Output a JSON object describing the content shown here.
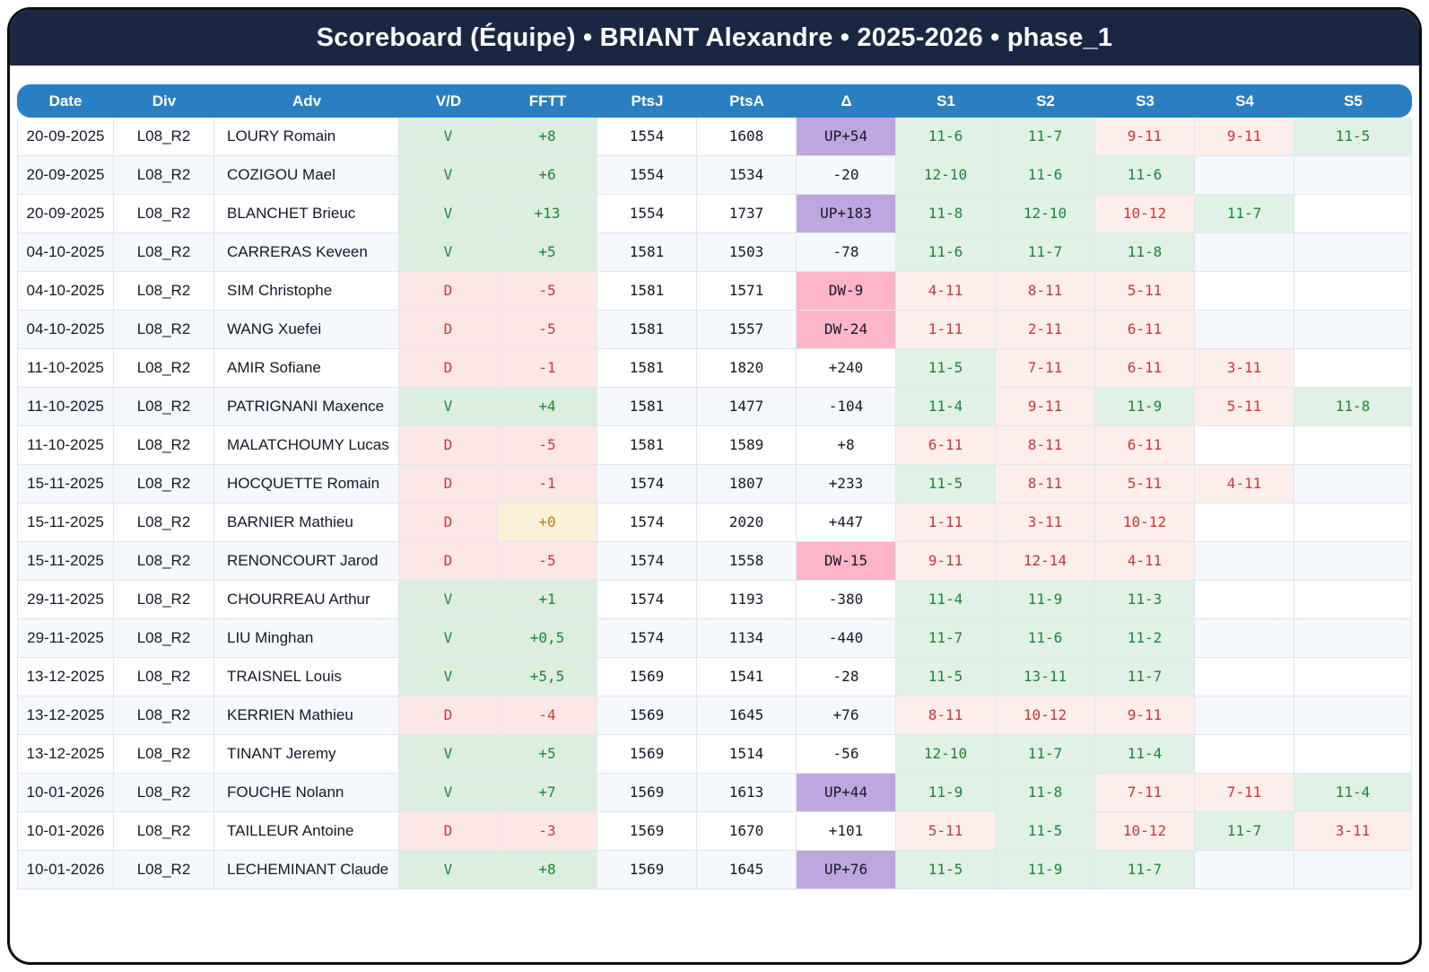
{
  "title": "Scoreboard (Équipe) • BRIANT Alexandre • 2025-2026 • phase_1",
  "colors": {
    "title_bg": "#1a2742",
    "header_bg": "#2a7fc2",
    "win_bg": "#dceede",
    "win_text": "#1e8539",
    "loss_bg": "#fce7e6",
    "loss_text": "#c13a36",
    "set_win_bg": "#e0f1e5",
    "set_loss_bg": "#fdeeec",
    "zero_bg": "#fcf0d8",
    "zero_text": "#b87f16",
    "up_bg": "#bfa6de",
    "down_bg": "#fdb5c7",
    "stripe": "#f5f8fc"
  },
  "table": {
    "columns": [
      "Date",
      "Div",
      "Adv",
      "V/D",
      "FFTT",
      "PtsJ",
      "PtsA",
      "Δ",
      "S1",
      "S2",
      "S3",
      "S4",
      "S5"
    ],
    "rows": [
      {
        "date": "20-09-2025",
        "div": "L08_R2",
        "adv": "LOURY Romain",
        "vd": "V",
        "fftt": "+8",
        "ptsj": "1554",
        "ptsa": "1608",
        "delta": "UP+54",
        "sets": [
          "11-6",
          "11-7",
          "9-11",
          "9-11",
          "11-5"
        ]
      },
      {
        "date": "20-09-2025",
        "div": "L08_R2",
        "adv": "COZIGOU Mael",
        "vd": "V",
        "fftt": "+6",
        "ptsj": "1554",
        "ptsa": "1534",
        "delta": "-20",
        "sets": [
          "12-10",
          "11-6",
          "11-6",
          "",
          ""
        ]
      },
      {
        "date": "20-09-2025",
        "div": "L08_R2",
        "adv": "BLANCHET Brieuc",
        "vd": "V",
        "fftt": "+13",
        "ptsj": "1554",
        "ptsa": "1737",
        "delta": "UP+183",
        "sets": [
          "11-8",
          "12-10",
          "10-12",
          "11-7",
          ""
        ]
      },
      {
        "date": "04-10-2025",
        "div": "L08_R2",
        "adv": "CARRERAS Keveen",
        "vd": "V",
        "fftt": "+5",
        "ptsj": "1581",
        "ptsa": "1503",
        "delta": "-78",
        "sets": [
          "11-6",
          "11-7",
          "11-8",
          "",
          ""
        ]
      },
      {
        "date": "04-10-2025",
        "div": "L08_R2",
        "adv": "SIM Christophe",
        "vd": "D",
        "fftt": "-5",
        "ptsj": "1581",
        "ptsa": "1571",
        "delta": "DW-9",
        "sets": [
          "4-11",
          "8-11",
          "5-11",
          "",
          ""
        ]
      },
      {
        "date": "04-10-2025",
        "div": "L08_R2",
        "adv": "WANG Xuefei",
        "vd": "D",
        "fftt": "-5",
        "ptsj": "1581",
        "ptsa": "1557",
        "delta": "DW-24",
        "sets": [
          "1-11",
          "2-11",
          "6-11",
          "",
          ""
        ]
      },
      {
        "date": "11-10-2025",
        "div": "L08_R2",
        "adv": "AMIR Sofiane",
        "vd": "D",
        "fftt": "-1",
        "ptsj": "1581",
        "ptsa": "1820",
        "delta": "+240",
        "sets": [
          "11-5",
          "7-11",
          "6-11",
          "3-11",
          ""
        ]
      },
      {
        "date": "11-10-2025",
        "div": "L08_R2",
        "adv": "PATRIGNANI Maxence",
        "vd": "V",
        "fftt": "+4",
        "ptsj": "1581",
        "ptsa": "1477",
        "delta": "-104",
        "sets": [
          "11-4",
          "9-11",
          "11-9",
          "5-11",
          "11-8"
        ]
      },
      {
        "date": "11-10-2025",
        "div": "L08_R2",
        "adv": "MALATCHOUMY Lucas",
        "vd": "D",
        "fftt": "-5",
        "ptsj": "1581",
        "ptsa": "1589",
        "delta": "+8",
        "sets": [
          "6-11",
          "8-11",
          "6-11",
          "",
          ""
        ]
      },
      {
        "date": "15-11-2025",
        "div": "L08_R2",
        "adv": "HOCQUETTE Romain",
        "vd": "D",
        "fftt": "-1",
        "ptsj": "1574",
        "ptsa": "1807",
        "delta": "+233",
        "sets": [
          "11-5",
          "8-11",
          "5-11",
          "4-11",
          ""
        ]
      },
      {
        "date": "15-11-2025",
        "div": "L08_R2",
        "adv": "BARNIER Mathieu",
        "vd": "D",
        "fftt": "+0",
        "ptsj": "1574",
        "ptsa": "2020",
        "delta": "+447",
        "sets": [
          "1-11",
          "3-11",
          "10-12",
          "",
          ""
        ]
      },
      {
        "date": "15-11-2025",
        "div": "L08_R2",
        "adv": "RENONCOURT Jarod",
        "vd": "D",
        "fftt": "-5",
        "ptsj": "1574",
        "ptsa": "1558",
        "delta": "DW-15",
        "sets": [
          "9-11",
          "12-14",
          "4-11",
          "",
          ""
        ]
      },
      {
        "date": "29-11-2025",
        "div": "L08_R2",
        "adv": "CHOURREAU Arthur",
        "vd": "V",
        "fftt": "+1",
        "ptsj": "1574",
        "ptsa": "1193",
        "delta": "-380",
        "sets": [
          "11-4",
          "11-9",
          "11-3",
          "",
          ""
        ]
      },
      {
        "date": "29-11-2025",
        "div": "L08_R2",
        "adv": "LIU Minghan",
        "vd": "V",
        "fftt": "+0,5",
        "ptsj": "1574",
        "ptsa": "1134",
        "delta": "-440",
        "sets": [
          "11-7",
          "11-6",
          "11-2",
          "",
          ""
        ]
      },
      {
        "date": "13-12-2025",
        "div": "L08_R2",
        "adv": "TRAISNEL Louis",
        "vd": "V",
        "fftt": "+5,5",
        "ptsj": "1569",
        "ptsa": "1541",
        "delta": "-28",
        "sets": [
          "11-5",
          "13-11",
          "11-7",
          "",
          ""
        ]
      },
      {
        "date": "13-12-2025",
        "div": "L08_R2",
        "adv": "KERRIEN Mathieu",
        "vd": "D",
        "fftt": "-4",
        "ptsj": "1569",
        "ptsa": "1645",
        "delta": "+76",
        "sets": [
          "8-11",
          "10-12",
          "9-11",
          "",
          ""
        ]
      },
      {
        "date": "13-12-2025",
        "div": "L08_R2",
        "adv": "TINANT Jeremy",
        "vd": "V",
        "fftt": "+5",
        "ptsj": "1569",
        "ptsa": "1514",
        "delta": "-56",
        "sets": [
          "12-10",
          "11-7",
          "11-4",
          "",
          ""
        ]
      },
      {
        "date": "10-01-2026",
        "div": "L08_R2",
        "adv": "FOUCHE Nolann",
        "vd": "V",
        "fftt": "+7",
        "ptsj": "1569",
        "ptsa": "1613",
        "delta": "UP+44",
        "sets": [
          "11-9",
          "11-8",
          "7-11",
          "7-11",
          "11-4"
        ]
      },
      {
        "date": "10-01-2026",
        "div": "L08_R2",
        "adv": "TAILLEUR Antoine",
        "vd": "D",
        "fftt": "-3",
        "ptsj": "1569",
        "ptsa": "1670",
        "delta": "+101",
        "sets": [
          "5-11",
          "11-5",
          "10-12",
          "11-7",
          "3-11"
        ]
      },
      {
        "date": "10-01-2026",
        "div": "L08_R2",
        "adv": "LECHEMINANT Claude",
        "vd": "V",
        "fftt": "+8",
        "ptsj": "1569",
        "ptsa": "1645",
        "delta": "UP+76",
        "sets": [
          "11-5",
          "11-9",
          "11-7",
          "",
          ""
        ]
      }
    ]
  }
}
